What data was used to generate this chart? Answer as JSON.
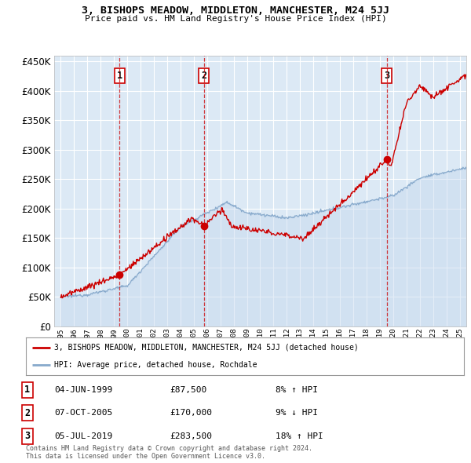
{
  "title": "3, BISHOPS MEADOW, MIDDLETON, MANCHESTER, M24 5JJ",
  "subtitle": "Price paid vs. HM Land Registry's House Price Index (HPI)",
  "legend_label_red": "3, BISHOPS MEADOW, MIDDLETON, MANCHESTER, M24 5JJ (detached house)",
  "legend_label_blue": "HPI: Average price, detached house, Rochdale",
  "transactions": [
    {
      "num": 1,
      "date": "04-JUN-1999",
      "price": 87500,
      "year": 1999.43,
      "pct": "8%",
      "dir": "↑"
    },
    {
      "num": 2,
      "date": "07-OCT-2005",
      "price": 170000,
      "year": 2005.77,
      "pct": "9%",
      "dir": "↓"
    },
    {
      "num": 3,
      "date": "05-JUL-2019",
      "price": 283500,
      "year": 2019.51,
      "pct": "18%",
      "dir": "↑"
    }
  ],
  "footer1": "Contains HM Land Registry data © Crown copyright and database right 2024.",
  "footer2": "This data is licensed under the Open Government Licence v3.0.",
  "ylim": [
    0,
    460000
  ],
  "yticks": [
    0,
    50000,
    100000,
    150000,
    200000,
    250000,
    300000,
    350000,
    400000,
    450000
  ],
  "xlim_start": 1994.5,
  "xlim_end": 2025.5,
  "background_color": "#dce9f5",
  "grid_color": "#ffffff",
  "red_color": "#cc0000",
  "blue_color": "#88aacc",
  "blue_fill": "#c5d8ee"
}
